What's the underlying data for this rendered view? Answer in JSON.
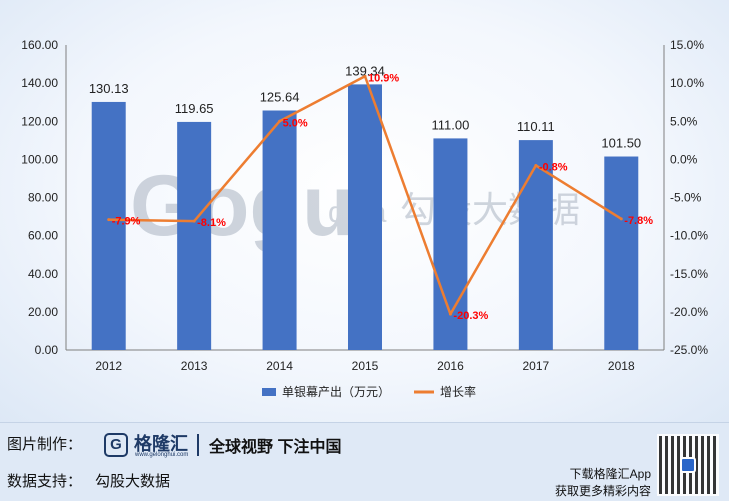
{
  "chart_data": {
    "type": "bar+line",
    "categories": [
      "2012",
      "2013",
      "2014",
      "2015",
      "2016",
      "2017",
      "2018"
    ],
    "series": [
      {
        "name": "单银幕产出（万元）",
        "type": "bar",
        "axis": "left",
        "values": [
          130.13,
          119.65,
          125.64,
          139.34,
          111.0,
          110.11,
          101.5
        ],
        "labels": [
          "130.13",
          "119.65",
          "125.64",
          "139.34",
          "111.00",
          "110.11",
          "101.50"
        ],
        "color": "#4472c4"
      },
      {
        "name": "增长率",
        "type": "line",
        "axis": "right",
        "values": [
          -7.9,
          -8.1,
          5.0,
          10.9,
          -20.3,
          -0.8,
          -7.8
        ],
        "labels": [
          "-7.9%",
          "-8.1%",
          "5.0%",
          "10.9%",
          "-20.3%",
          "-0.8%",
          "-7.8%"
        ],
        "color": "#ed7d31",
        "label_color": "#ff0000"
      }
    ],
    "y_left": {
      "range": [
        0,
        160
      ],
      "ticks": [
        0,
        20,
        40,
        60,
        80,
        100,
        120,
        140,
        160
      ],
      "tick_labels": [
        "0.00",
        "20.00",
        "40.00",
        "60.00",
        "80.00",
        "100.00",
        "120.00",
        "140.00",
        "160.00"
      ]
    },
    "y_right": {
      "range": [
        -25,
        15
      ],
      "ticks": [
        -25,
        -20,
        -15,
        -10,
        -5,
        0,
        5,
        10,
        15
      ],
      "tick_labels": [
        "-25.0%",
        "-20.0%",
        "-15.0%",
        "-10.0%",
        "-5.0%",
        "0.0%",
        "5.0%",
        "10.0%",
        "15.0%"
      ]
    },
    "grid": false,
    "legend_position": "bottom"
  },
  "watermark": {
    "logo_text": "Gogu",
    "logo_suffix": "data",
    "cn_text": "勾股大数据"
  },
  "footer": {
    "made_by_label": "图片制作：",
    "logo_letter": "G",
    "brand_name": "格隆汇",
    "brand_url": "www.gelonghui.com",
    "slogan": "全球视野 下注中国",
    "data_support_label": "数据支持：",
    "data_support_value": "勾股大数据",
    "app_line1": "下载格隆汇App",
    "app_line2": "获取更多精彩内容",
    "qr_icon": "qr-code-icon"
  }
}
